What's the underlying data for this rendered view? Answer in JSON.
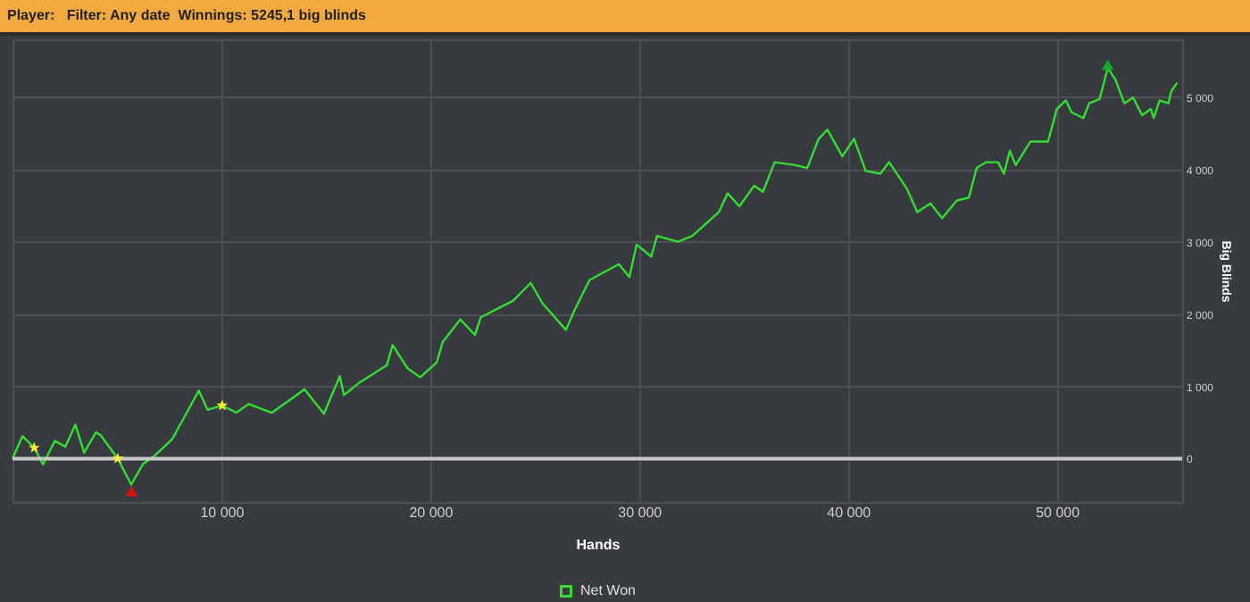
{
  "chart_data": {
    "type": "line",
    "title": "Player:   Filter: Any date  Winnings: 5245,1 big blinds",
    "xlabel": "Hands",
    "ylabel": "Big Blinds",
    "xlim": [
      0,
      56000
    ],
    "ylim": [
      -600,
      5800
    ],
    "xticks": [
      {
        "value": 10000,
        "label": "10 000"
      },
      {
        "value": 20000,
        "label": "20 000"
      },
      {
        "value": 30000,
        "label": "30 000"
      },
      {
        "value": 40000,
        "label": "40 000"
      },
      {
        "value": 50000,
        "label": "50 000"
      }
    ],
    "yticks": [
      0,
      {
        "value": 1000,
        "label": "1 000"
      },
      {
        "value": 2000,
        "label": "2 000"
      },
      {
        "value": 3000,
        "label": "3 000"
      },
      {
        "value": 4000,
        "label": "4 000"
      },
      {
        "value": 5000,
        "label": "5 000"
      }
    ],
    "grid": true,
    "legend": "bottom",
    "line_style": "solid",
    "marker": "none",
    "ref_lines": [
      {
        "axis": "y",
        "value": 0,
        "color": "#c8c8c8"
      }
    ],
    "series": [
      {
        "name": "Net Won",
        "color": "#33dd33",
        "x": [
          0,
          480,
          1040,
          1460,
          2030,
          2530,
          3010,
          3430,
          4000,
          4230,
          5040,
          5680,
          6250,
          6810,
          7650,
          8190,
          8920,
          9340,
          10040,
          10720,
          11310,
          12420,
          13420,
          13980,
          14910,
          15670,
          15870,
          16650,
          17920,
          18200,
          18910,
          19520,
          20310,
          20600,
          21440,
          22140,
          22420,
          23970,
          24810,
          25380,
          26500,
          26920,
          27630,
          29030,
          29540,
          29880,
          30580,
          30860,
          31850,
          32550,
          33820,
          34240,
          34800,
          35510,
          35930,
          36490,
          37480,
          38050,
          38600,
          39020,
          39730,
          40290,
          40850,
          41550,
          41970,
          42820,
          43320,
          43950,
          44510,
          45210,
          45790,
          46160,
          46620,
          47190,
          47470,
          47750,
          48030,
          48730,
          49580,
          50000,
          50430,
          50710,
          51270,
          51550,
          52050,
          52440,
          52810,
          53230,
          53650,
          54080,
          54500,
          54640,
          54920,
          55340,
          55480,
          55760
        ],
        "values": [
          0,
          310,
          150,
          -80,
          245,
          165,
          470,
          80,
          365,
          320,
          0,
          -360,
          -75,
          40,
          270,
          555,
          940,
          675,
          735,
          635,
          755,
          635,
          840,
          960,
          620,
          1140,
          880,
          1060,
          1290,
          1570,
          1250,
          1125,
          1330,
          1615,
          1925,
          1710,
          1955,
          2185,
          2430,
          2145,
          1780,
          2060,
          2470,
          2690,
          2510,
          2960,
          2795,
          3080,
          3000,
          3080,
          3410,
          3670,
          3490,
          3775,
          3690,
          4100,
          4060,
          4020,
          4425,
          4550,
          4180,
          4425,
          3980,
          3940,
          4100,
          3735,
          3410,
          3530,
          3325,
          3570,
          3610,
          4020,
          4100,
          4100,
          3940,
          4260,
          4060,
          4385,
          4385,
          4835,
          4955,
          4790,
          4710,
          4915,
          4975,
          5405,
          5240,
          4915,
          4995,
          4750,
          4835,
          4710,
          4955,
          4915,
          5080,
          5200
        ]
      },
      {
        "type": "scatter",
        "marker": "star",
        "color": "#ffee33",
        "x": [
          1040,
          5040,
          10040
        ],
        "values": [
          150,
          0,
          735
        ]
      },
      {
        "type": "scatter",
        "marker": "triangle",
        "color": "#dd1111",
        "x": [
          5700
        ],
        "values": [
          -450
        ]
      },
      {
        "type": "scatter",
        "marker": "triangle",
        "color": "#11aa22",
        "x": [
          52440
        ],
        "values": [
          5450
        ]
      }
    ]
  }
}
